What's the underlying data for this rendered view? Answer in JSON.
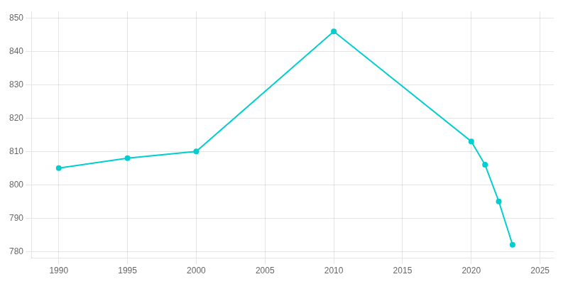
{
  "chart_data": {
    "type": "line",
    "x": [
      1990,
      1995,
      2000,
      2010,
      2020,
      2021,
      2022,
      2023
    ],
    "values": [
      805,
      808,
      810,
      846,
      813,
      806,
      795,
      782
    ],
    "color": "#00CED1",
    "marker": "circle",
    "xlim": [
      1988,
      2026
    ],
    "xticks": [
      1990,
      1995,
      2000,
      2005,
      2010,
      2015,
      2020,
      2025
    ],
    "ylim": [
      778,
      852
    ],
    "yticks": [
      780,
      790,
      800,
      810,
      820,
      830,
      840,
      850
    ],
    "grid": true
  }
}
